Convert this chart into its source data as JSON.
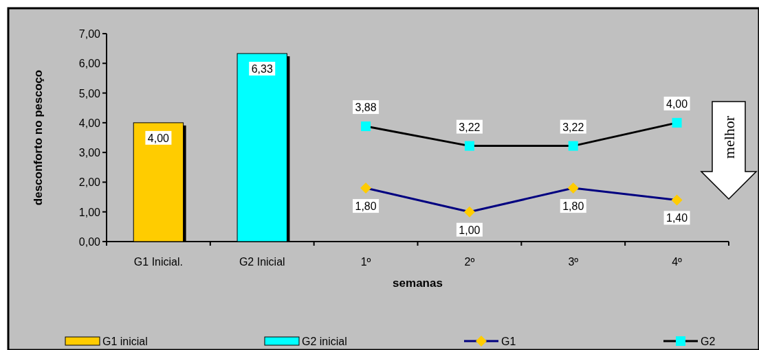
{
  "chart_data": {
    "type": "bar",
    "ylabel": "desconforto no pescoço",
    "xlabel": "semanas",
    "categories": [
      "G1 Inicial.",
      "G2 Inicial",
      "1º",
      "2º",
      "3º",
      "4º"
    ],
    "series": [
      {
        "name": "G1 inicial",
        "color": "#ffcc00",
        "values": [
          4.0,
          null,
          null,
          null,
          null,
          null
        ],
        "value_labels": [
          "4,00",
          null,
          null,
          null,
          null,
          null
        ]
      },
      {
        "name": "G2 inicial",
        "color": "#00ffff",
        "values": [
          null,
          6.33,
          null,
          null,
          null,
          null
        ],
        "value_labels": [
          null,
          "6,33",
          null,
          null,
          null,
          null
        ]
      },
      {
        "name": "G1",
        "type": "line",
        "color": "#000080",
        "marker": "diamond",
        "colors": [
          null,
          null,
          "#ffcc00",
          "#ffcc00",
          "#ffcc00",
          "#ffcc00"
        ],
        "values": [
          null,
          null,
          1.8,
          1.0,
          1.8,
          1.4
        ],
        "value_labels": [
          null,
          null,
          "1,80",
          "1,00",
          "1,80",
          "1,40"
        ]
      },
      {
        "name": "G2",
        "type": "line",
        "color": "#000000",
        "marker": "square",
        "colors": [
          null,
          null,
          "#00ffff",
          "#00ffff",
          "#00ffff",
          "#00ffff"
        ],
        "values": [
          null,
          null,
          3.88,
          3.22,
          3.22,
          4.0
        ],
        "value_labels": [
          null,
          null,
          "3,88",
          "3,22",
          "3,22",
          "4,00"
        ]
      }
    ],
    "ylim": [
      0,
      7
    ],
    "yticks": [
      {
        "value": 0,
        "label": "0,00"
      },
      {
        "value": 1,
        "label": "1,00"
      },
      {
        "value": 2,
        "label": "2,00"
      },
      {
        "value": 3,
        "label": "3,00"
      },
      {
        "value": 4,
        "label": "4,00"
      },
      {
        "value": 5,
        "label": "5,00"
      },
      {
        "value": 6,
        "label": "6,00"
      },
      {
        "value": 7,
        "label": "7,00"
      }
    ],
    "grid": false,
    "legend": "bottom",
    "annotations": [
      "melhor"
    ]
  }
}
